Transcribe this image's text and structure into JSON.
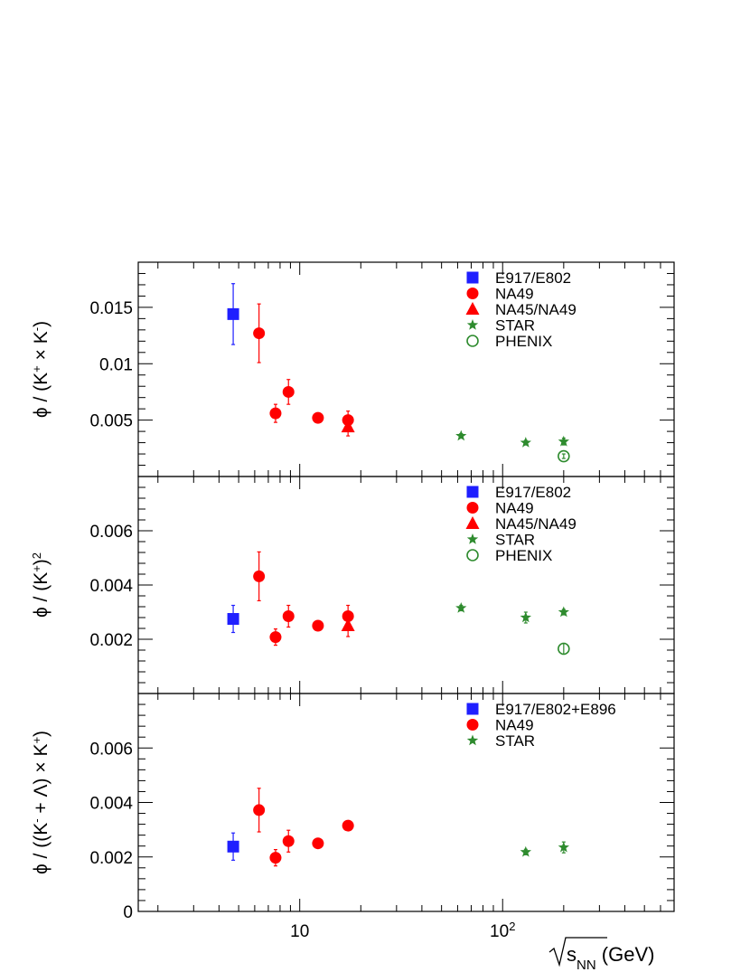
{
  "colors": {
    "blue": "#1f1fff",
    "red": "#ff0000",
    "green": "#2e8b2e",
    "axis": "#000000"
  },
  "xaxis": {
    "label_main": "s",
    "label_sub": "NN",
    "label_unit": " (GeV)",
    "scale": "log",
    "range": [
      1.6,
      700
    ],
    "major_ticks": [
      10,
      100
    ],
    "tick_labels": [
      {
        "base": "10",
        "exp": ""
      },
      {
        "base": "10",
        "exp": "2"
      }
    ]
  },
  "chart_data": [
    {
      "type": "scatter",
      "ylabel": "ϕ / (K⁺ × K⁻)",
      "ylabel_parts": [
        "ϕ / (K",
        "+",
        " × K",
        "-",
        ")"
      ],
      "ylim": [
        0,
        0.019
      ],
      "yticks": [
        0.005,
        0.01,
        0.015
      ],
      "ytick_labels": [
        "0.005",
        "0.01",
        "0.015"
      ],
      "legend_position": "top-right",
      "series": [
        {
          "name": "E917/E802",
          "marker": "square",
          "color": "blue",
          "points": [
            {
              "x": 4.7,
              "y": 0.0144,
              "err": 0.0027
            }
          ]
        },
        {
          "name": "NA49",
          "marker": "circle",
          "color": "red",
          "points": [
            {
              "x": 6.3,
              "y": 0.0127,
              "err": 0.0026
            },
            {
              "x": 7.6,
              "y": 0.0056,
              "err": 0.0008
            },
            {
              "x": 8.8,
              "y": 0.0075,
              "err": 0.0011
            },
            {
              "x": 12.3,
              "y": 0.0052,
              "err": 0.0
            },
            {
              "x": 17.3,
              "y": 0.005,
              "err": 0.0008
            }
          ]
        },
        {
          "name": "NA45/NA49",
          "marker": "triangle",
          "color": "red",
          "points": [
            {
              "x": 17.3,
              "y": 0.0044,
              "err": 0.0008
            }
          ]
        },
        {
          "name": "STAR",
          "marker": "star",
          "color": "green",
          "points": [
            {
              "x": 62.4,
              "y": 0.0036,
              "err": 0.0002
            },
            {
              "x": 130,
              "y": 0.003,
              "err": 0.0002
            },
            {
              "x": 200,
              "y": 0.0031,
              "err": 0.0003
            }
          ]
        },
        {
          "name": "PHENIX",
          "marker": "open-circle",
          "color": "green",
          "points": [
            {
              "x": 200,
              "y": 0.0018,
              "err": 0.0002
            }
          ]
        }
      ]
    },
    {
      "type": "scatter",
      "ylabel": "ϕ / (K⁺)²",
      "ylabel_parts": [
        "ϕ / (K",
        "+",
        ")",
        "2",
        ""
      ],
      "ylim": [
        0,
        0.008
      ],
      "yticks": [
        0.002,
        0.004,
        0.006
      ],
      "ytick_labels": [
        "0.002",
        "0.004",
        "0.006"
      ],
      "legend_position": "top-right",
      "series": [
        {
          "name": "E917/E802",
          "marker": "square",
          "color": "blue",
          "points": [
            {
              "x": 4.7,
              "y": 0.00275,
              "err": 0.0005
            }
          ]
        },
        {
          "name": "NA49",
          "marker": "circle",
          "color": "red",
          "points": [
            {
              "x": 6.3,
              "y": 0.00432,
              "err": 0.0009
            },
            {
              "x": 7.6,
              "y": 0.00208,
              "err": 0.0003
            },
            {
              "x": 8.8,
              "y": 0.00285,
              "err": 0.0004
            },
            {
              "x": 12.3,
              "y": 0.0025,
              "err": 0.0
            },
            {
              "x": 17.3,
              "y": 0.00285,
              "err": 0.0004
            }
          ]
        },
        {
          "name": "NA45/NA49",
          "marker": "triangle",
          "color": "red",
          "points": [
            {
              "x": 17.3,
              "y": 0.0025,
              "err": 0.0004
            }
          ]
        },
        {
          "name": "STAR",
          "marker": "star",
          "color": "green",
          "points": [
            {
              "x": 62.4,
              "y": 0.00315,
              "err": 0.0001
            },
            {
              "x": 130,
              "y": 0.0028,
              "err": 0.0002
            },
            {
              "x": 200,
              "y": 0.003,
              "err": 0.0001
            }
          ]
        },
        {
          "name": "PHENIX",
          "marker": "open-circle",
          "color": "green",
          "points": [
            {
              "x": 200,
              "y": 0.00165,
              "err": 0.0002
            }
          ]
        }
      ]
    },
    {
      "type": "scatter",
      "ylabel": "ϕ / ((K⁻ + Λ) × K⁺)",
      "ylabel_parts": [
        "ϕ / ((K",
        "-",
        " + Λ) × K",
        "+",
        ")"
      ],
      "ylim": [
        0,
        0.008
      ],
      "yticks": [
        0,
        0.002,
        0.004,
        0.006
      ],
      "ytick_labels": [
        "0",
        "0.002",
        "0.004",
        "0.006"
      ],
      "legend_position": "top-right",
      "series": [
        {
          "name": "E917/E802+E896",
          "marker": "square",
          "color": "blue",
          "points": [
            {
              "x": 4.7,
              "y": 0.00238,
              "err": 0.0005
            }
          ]
        },
        {
          "name": "NA49",
          "marker": "circle",
          "color": "red",
          "points": [
            {
              "x": 6.3,
              "y": 0.00372,
              "err": 0.0008
            },
            {
              "x": 7.6,
              "y": 0.00197,
              "err": 0.0003
            },
            {
              "x": 8.8,
              "y": 0.00258,
              "err": 0.0004
            },
            {
              "x": 12.3,
              "y": 0.0025,
              "err": 0.0
            },
            {
              "x": 17.3,
              "y": 0.00315,
              "err": 0.0
            }
          ]
        },
        {
          "name": "STAR",
          "marker": "star",
          "color": "green",
          "points": [
            {
              "x": 130,
              "y": 0.00218,
              "err": 0.0001
            },
            {
              "x": 200,
              "y": 0.00235,
              "err": 0.0002
            }
          ]
        }
      ]
    }
  ]
}
